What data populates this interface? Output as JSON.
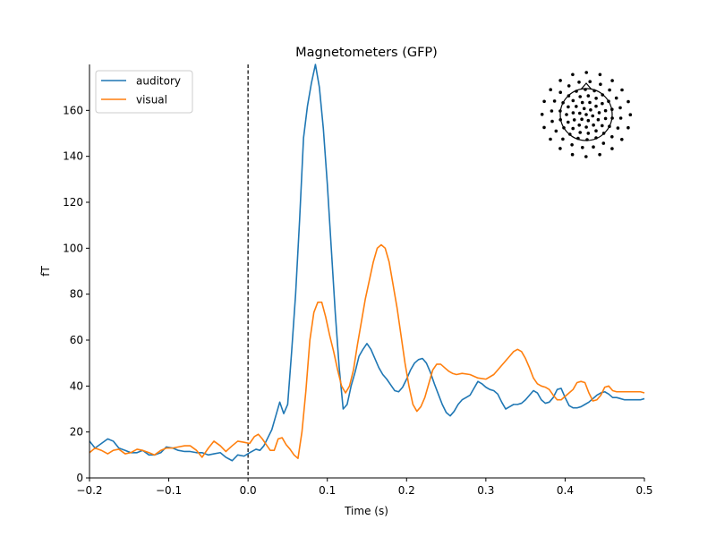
{
  "chart_data": {
    "type": "line",
    "title": "Magnetometers (GFP)",
    "xlabel": "Time (s)",
    "ylabel": "fT",
    "xlim": [
      -0.2,
      0.5
    ],
    "ylim": [
      0,
      180
    ],
    "xticks": [
      -0.2,
      -0.1,
      0.0,
      0.1,
      0.2,
      0.3,
      0.4,
      0.5
    ],
    "xtick_labels": [
      "−0.2",
      "−0.1",
      "0.0",
      "0.1",
      "0.2",
      "0.3",
      "0.4",
      "0.5"
    ],
    "yticks": [
      0,
      20,
      40,
      60,
      80,
      100,
      120,
      140,
      160
    ],
    "ytick_labels": [
      "0",
      "20",
      "40",
      "60",
      "80",
      "100",
      "120",
      "140",
      "160"
    ],
    "grid": false,
    "legend_position": "top-left",
    "event_marker_x": 0.0,
    "series": [
      {
        "name": "auditory",
        "color": "#1f77b4",
        "points": [
          [
            -0.2,
            16
          ],
          [
            -0.193,
            13
          ],
          [
            -0.185,
            15
          ],
          [
            -0.177,
            17
          ],
          [
            -0.17,
            16
          ],
          [
            -0.163,
            13
          ],
          [
            -0.155,
            12
          ],
          [
            -0.148,
            11
          ],
          [
            -0.14,
            11
          ],
          [
            -0.133,
            12
          ],
          [
            -0.125,
            10
          ],
          [
            -0.118,
            10
          ],
          [
            -0.11,
            11
          ],
          [
            -0.103,
            13.5
          ],
          [
            -0.095,
            13
          ],
          [
            -0.088,
            12
          ],
          [
            -0.08,
            11.5
          ],
          [
            -0.073,
            11.5
          ],
          [
            -0.065,
            11
          ],
          [
            -0.058,
            11
          ],
          [
            -0.05,
            10
          ],
          [
            -0.043,
            10.5
          ],
          [
            -0.035,
            11
          ],
          [
            -0.028,
            9
          ],
          [
            -0.02,
            7.5
          ],
          [
            -0.013,
            10
          ],
          [
            -0.005,
            9.5
          ],
          [
            0.002,
            11
          ],
          [
            0.01,
            12.5
          ],
          [
            0.015,
            12
          ],
          [
            0.02,
            14
          ],
          [
            0.025,
            17.5
          ],
          [
            0.03,
            21
          ],
          [
            0.035,
            27
          ],
          [
            0.04,
            33
          ],
          [
            0.045,
            28
          ],
          [
            0.05,
            32
          ],
          [
            0.055,
            55
          ],
          [
            0.06,
            80
          ],
          [
            0.065,
            112
          ],
          [
            0.07,
            148
          ],
          [
            0.075,
            162
          ],
          [
            0.08,
            172
          ],
          [
            0.085,
            180
          ],
          [
            0.09,
            170
          ],
          [
            0.095,
            152
          ],
          [
            0.1,
            128
          ],
          [
            0.105,
            100
          ],
          [
            0.11,
            72
          ],
          [
            0.115,
            48
          ],
          [
            0.12,
            30
          ],
          [
            0.125,
            32
          ],
          [
            0.13,
            40
          ],
          [
            0.135,
            46
          ],
          [
            0.14,
            53
          ],
          [
            0.145,
            56
          ],
          [
            0.15,
            58.5
          ],
          [
            0.155,
            56
          ],
          [
            0.16,
            52
          ],
          [
            0.165,
            48
          ],
          [
            0.17,
            45
          ],
          [
            0.175,
            43
          ],
          [
            0.18,
            40.5
          ],
          [
            0.185,
            38
          ],
          [
            0.19,
            37.5
          ],
          [
            0.195,
            39.5
          ],
          [
            0.2,
            43
          ],
          [
            0.205,
            47
          ],
          [
            0.21,
            50
          ],
          [
            0.215,
            51.5
          ],
          [
            0.22,
            52
          ],
          [
            0.225,
            50
          ],
          [
            0.23,
            46
          ],
          [
            0.235,
            41
          ],
          [
            0.24,
            36.5
          ],
          [
            0.245,
            32
          ],
          [
            0.25,
            28.5
          ],
          [
            0.255,
            27
          ],
          [
            0.26,
            29
          ],
          [
            0.265,
            32
          ],
          [
            0.27,
            34
          ],
          [
            0.275,
            35
          ],
          [
            0.28,
            36
          ],
          [
            0.285,
            39
          ],
          [
            0.29,
            42
          ],
          [
            0.295,
            41
          ],
          [
            0.3,
            39.5
          ],
          [
            0.305,
            38.5
          ],
          [
            0.31,
            38
          ],
          [
            0.315,
            36.5
          ],
          [
            0.32,
            33
          ],
          [
            0.325,
            30
          ],
          [
            0.33,
            31
          ],
          [
            0.335,
            32
          ],
          [
            0.34,
            32
          ],
          [
            0.345,
            32.5
          ],
          [
            0.35,
            34
          ],
          [
            0.355,
            36
          ],
          [
            0.36,
            38
          ],
          [
            0.365,
            37
          ],
          [
            0.37,
            34
          ],
          [
            0.375,
            32.5
          ],
          [
            0.38,
            33
          ],
          [
            0.385,
            35
          ],
          [
            0.39,
            38.5
          ],
          [
            0.395,
            39
          ],
          [
            0.4,
            35
          ],
          [
            0.405,
            31.5
          ],
          [
            0.41,
            30.5
          ],
          [
            0.415,
            30.5
          ],
          [
            0.42,
            31
          ],
          [
            0.425,
            32
          ],
          [
            0.43,
            33
          ],
          [
            0.435,
            34.5
          ],
          [
            0.44,
            36
          ],
          [
            0.445,
            37
          ],
          [
            0.45,
            37.5
          ],
          [
            0.455,
            36.5
          ],
          [
            0.46,
            35
          ],
          [
            0.465,
            35
          ],
          [
            0.47,
            34.5
          ],
          [
            0.475,
            34
          ],
          [
            0.48,
            34
          ],
          [
            0.485,
            34
          ],
          [
            0.49,
            34
          ],
          [
            0.495,
            34
          ],
          [
            0.5,
            34.5
          ]
        ]
      },
      {
        "name": "visual",
        "color": "#ff7f0e",
        "points": [
          [
            -0.2,
            11
          ],
          [
            -0.193,
            13
          ],
          [
            -0.185,
            12
          ],
          [
            -0.177,
            10.5
          ],
          [
            -0.17,
            12
          ],
          [
            -0.163,
            12.5
          ],
          [
            -0.155,
            10.5
          ],
          [
            -0.148,
            11
          ],
          [
            -0.14,
            12.5
          ],
          [
            -0.133,
            12
          ],
          [
            -0.125,
            11
          ],
          [
            -0.118,
            10
          ],
          [
            -0.11,
            12
          ],
          [
            -0.103,
            13
          ],
          [
            -0.095,
            13
          ],
          [
            -0.088,
            13.5
          ],
          [
            -0.08,
            14
          ],
          [
            -0.073,
            14
          ],
          [
            -0.065,
            12
          ],
          [
            -0.058,
            9
          ],
          [
            -0.05,
            13
          ],
          [
            -0.043,
            16
          ],
          [
            -0.035,
            14
          ],
          [
            -0.028,
            11.5
          ],
          [
            -0.02,
            14
          ],
          [
            -0.013,
            16
          ],
          [
            -0.005,
            15.5
          ],
          [
            0.002,
            15
          ],
          [
            0.008,
            18
          ],
          [
            0.013,
            19
          ],
          [
            0.018,
            17
          ],
          [
            0.023,
            14.5
          ],
          [
            0.028,
            12
          ],
          [
            0.033,
            12
          ],
          [
            0.038,
            17
          ],
          [
            0.043,
            17.5
          ],
          [
            0.048,
            14.5
          ],
          [
            0.053,
            12.5
          ],
          [
            0.058,
            10
          ],
          [
            0.063,
            8.5
          ],
          [
            0.068,
            20
          ],
          [
            0.073,
            38
          ],
          [
            0.078,
            60
          ],
          [
            0.083,
            72
          ],
          [
            0.088,
            76.5
          ],
          [
            0.093,
            76.5
          ],
          [
            0.098,
            70
          ],
          [
            0.103,
            62
          ],
          [
            0.108,
            55
          ],
          [
            0.113,
            47
          ],
          [
            0.118,
            40
          ],
          [
            0.123,
            37
          ],
          [
            0.128,
            40
          ],
          [
            0.133,
            47
          ],
          [
            0.138,
            58
          ],
          [
            0.143,
            68
          ],
          [
            0.148,
            78
          ],
          [
            0.153,
            86
          ],
          [
            0.158,
            94
          ],
          [
            0.163,
            100
          ],
          [
            0.168,
            101.5
          ],
          [
            0.173,
            100
          ],
          [
            0.178,
            94
          ],
          [
            0.183,
            84
          ],
          [
            0.188,
            74
          ],
          [
            0.193,
            62
          ],
          [
            0.198,
            50
          ],
          [
            0.203,
            40
          ],
          [
            0.208,
            32
          ],
          [
            0.213,
            29
          ],
          [
            0.218,
            31
          ],
          [
            0.223,
            35
          ],
          [
            0.228,
            41
          ],
          [
            0.233,
            47
          ],
          [
            0.238,
            49.5
          ],
          [
            0.243,
            49.5
          ],
          [
            0.248,
            48
          ],
          [
            0.253,
            46.5
          ],
          [
            0.258,
            45.5
          ],
          [
            0.263,
            45
          ],
          [
            0.27,
            45.5
          ],
          [
            0.28,
            45
          ],
          [
            0.29,
            43.5
          ],
          [
            0.3,
            43
          ],
          [
            0.31,
            45
          ],
          [
            0.32,
            49
          ],
          [
            0.33,
            53
          ],
          [
            0.335,
            55
          ],
          [
            0.34,
            56
          ],
          [
            0.345,
            55
          ],
          [
            0.35,
            52
          ],
          [
            0.355,
            48
          ],
          [
            0.36,
            43.5
          ],
          [
            0.365,
            41
          ],
          [
            0.37,
            40
          ],
          [
            0.375,
            39.5
          ],
          [
            0.38,
            38.5
          ],
          [
            0.385,
            36
          ],
          [
            0.39,
            34
          ],
          [
            0.395,
            34
          ],
          [
            0.4,
            35.5
          ],
          [
            0.405,
            37
          ],
          [
            0.41,
            38.5
          ],
          [
            0.415,
            41.5
          ],
          [
            0.42,
            42
          ],
          [
            0.425,
            41.5
          ],
          [
            0.43,
            37
          ],
          [
            0.435,
            33.5
          ],
          [
            0.44,
            34
          ],
          [
            0.445,
            36
          ],
          [
            0.45,
            39.5
          ],
          [
            0.455,
            40
          ],
          [
            0.46,
            38
          ],
          [
            0.465,
            37.5
          ],
          [
            0.47,
            37.5
          ],
          [
            0.475,
            37.5
          ],
          [
            0.48,
            37.5
          ],
          [
            0.485,
            37.5
          ],
          [
            0.49,
            37.5
          ],
          [
            0.495,
            37.5
          ],
          [
            0.5,
            37
          ]
        ]
      }
    ]
  }
}
